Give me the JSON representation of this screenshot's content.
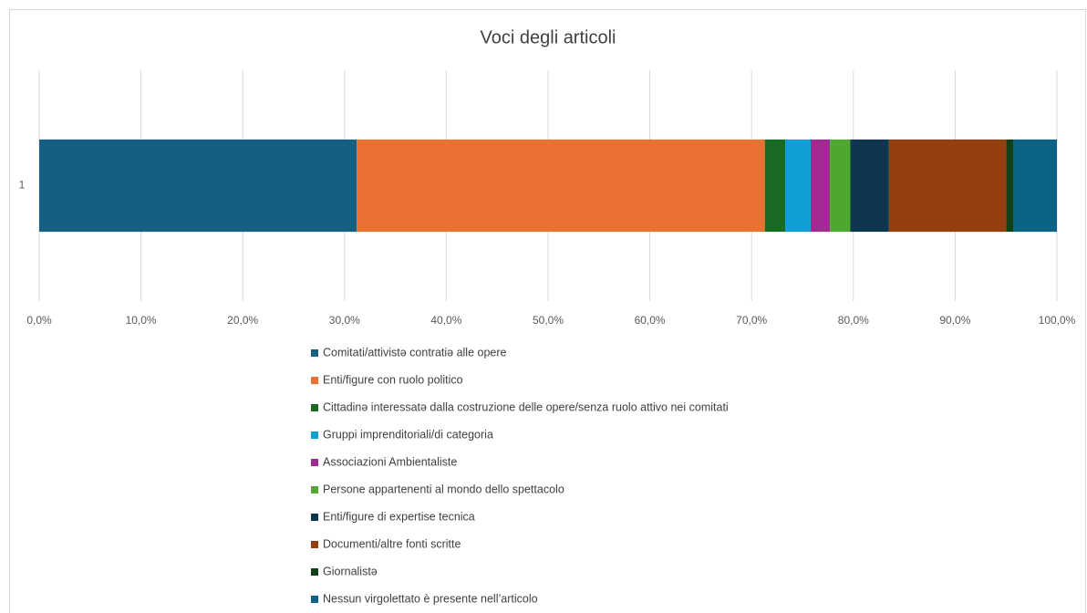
{
  "chart_data": {
    "type": "bar",
    "orientation": "horizontal",
    "stacked": true,
    "title": "Voci degli articoli",
    "categories": [
      "1"
    ],
    "series": [
      {
        "name": "Comitati/attivistə contratiə alle opere",
        "color": "#156082",
        "values": [
          31.2
        ]
      },
      {
        "name": "Enti/figure con ruolo politico",
        "color": "#e97132",
        "values": [
          40.1
        ]
      },
      {
        "name": "Cittadinə interessatə dalla costruzione delle opere/senza ruolo attivo nei comitati",
        "color": "#196b24",
        "values": [
          2.0
        ]
      },
      {
        "name": "Gruppi imprenditoriali/di categoria",
        "color": "#0f9ed5",
        "values": [
          2.5
        ]
      },
      {
        "name": "Associazioni Ambientaliste",
        "color": "#a02b93",
        "values": [
          1.9
        ]
      },
      {
        "name": "Persone appartenenti al mondo dello spettacolo",
        "color": "#4ea72e",
        "values": [
          2.0
        ]
      },
      {
        "name": "Enti/figure di expertise tecnica",
        "color": "#0e3650",
        "values": [
          3.8
        ]
      },
      {
        "name": "Documenti/altre fonti scritte",
        "color": "#953f11",
        "values": [
          11.5
        ]
      },
      {
        "name": "Giornalistə",
        "color": "#0f4016",
        "values": [
          0.7
        ]
      },
      {
        "name": "Nessun virgolettato è presente nell’articolo",
        "color": "#0d6385",
        "values": [
          4.3
        ]
      }
    ],
    "xlim": [
      0,
      100
    ],
    "xticks": [
      {
        "value": 0,
        "label": "0,0%"
      },
      {
        "value": 10,
        "label": "10,0%"
      },
      {
        "value": 20,
        "label": "20,0%"
      },
      {
        "value": 30,
        "label": "30,0%"
      },
      {
        "value": 40,
        "label": "40,0%"
      },
      {
        "value": 50,
        "label": "50,0%"
      },
      {
        "value": 60,
        "label": "60,0%"
      },
      {
        "value": 70,
        "label": "70,0%"
      },
      {
        "value": 80,
        "label": "80,0%"
      },
      {
        "value": 90,
        "label": "90,0%"
      },
      {
        "value": 100,
        "label": "100,0%"
      }
    ],
    "grid": true,
    "legend": "bottom"
  }
}
